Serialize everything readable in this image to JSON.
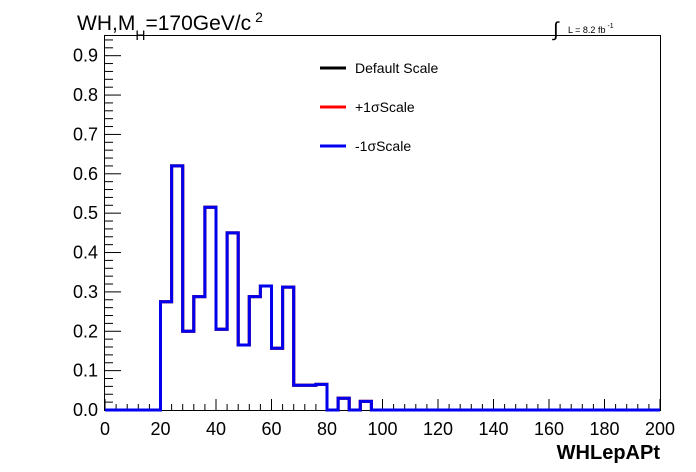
{
  "chart_data": {
    "type": "step",
    "title": {
      "main": "WH,M",
      "sub": "H",
      "rest": "=170GeV/c",
      "sup": "2"
    },
    "lumi": {
      "symbol": "∫",
      "text": "L = 8.2 fb",
      "sup": "-1"
    },
    "xlabel": "WHLepAPt",
    "xlim": [
      0,
      200
    ],
    "ylim": [
      0,
      0.95
    ],
    "x_ticks": [
      "0",
      "20",
      "40",
      "60",
      "80",
      "100",
      "120",
      "140",
      "160",
      "180",
      "200"
    ],
    "x_tick_values": [
      0,
      20,
      40,
      60,
      80,
      100,
      120,
      140,
      160,
      180,
      200
    ],
    "y_ticks": [
      "0.0",
      "0.1",
      "0.2",
      "0.3",
      "0.4",
      "0.5",
      "0.6",
      "0.7",
      "0.8",
      "0.9"
    ],
    "y_tick_values": [
      0,
      0.1,
      0.2,
      0.3,
      0.4,
      0.5,
      0.6,
      0.7,
      0.8,
      0.9
    ],
    "bin_width": 4,
    "series": [
      {
        "name": "Default Scale",
        "color": "#000000",
        "bin_edges": [
          0,
          4,
          8,
          12,
          16,
          20,
          24,
          28,
          32,
          36,
          40,
          44,
          48,
          52,
          56,
          60,
          64,
          68,
          72,
          76,
          80,
          84,
          88,
          92,
          96,
          100,
          104,
          108,
          112,
          116,
          120,
          124,
          128,
          132,
          136,
          140,
          144,
          148,
          152,
          156,
          160,
          164,
          168,
          172,
          176,
          180,
          184,
          188,
          192,
          196,
          200
        ],
        "values": [
          0,
          0,
          0,
          0,
          0,
          0.275,
          0.62,
          0.2,
          0.288,
          0.515,
          0.205,
          0.45,
          0.165,
          0.288,
          0.315,
          0.157,
          0.312,
          0.063,
          0.063,
          0.065,
          0,
          0.03,
          0,
          0.022,
          0,
          0,
          0,
          0,
          0,
          0,
          0,
          0,
          0,
          0,
          0,
          0,
          0,
          0,
          0,
          0,
          0,
          0,
          0,
          0,
          0,
          0,
          0,
          0,
          0,
          0
        ]
      },
      {
        "name": "+1σScale",
        "color": "#ff0000",
        "bin_edges": [
          0,
          4,
          8,
          12,
          16,
          20,
          24,
          28,
          32,
          36,
          40,
          44,
          48,
          52,
          56,
          60,
          64,
          68,
          72,
          76,
          80,
          84,
          88,
          92,
          96,
          100,
          104,
          108,
          112,
          116,
          120,
          124,
          128,
          132,
          136,
          140,
          144,
          148,
          152,
          156,
          160,
          164,
          168,
          172,
          176,
          180,
          184,
          188,
          192,
          196,
          200
        ],
        "values": [
          0,
          0,
          0,
          0,
          0,
          0.275,
          0.62,
          0.2,
          0.288,
          0.515,
          0.205,
          0.45,
          0.165,
          0.288,
          0.315,
          0.157,
          0.312,
          0.063,
          0.063,
          0.065,
          0,
          0.03,
          0,
          0.022,
          0,
          0,
          0,
          0,
          0,
          0,
          0,
          0,
          0,
          0,
          0,
          0,
          0,
          0,
          0,
          0,
          0,
          0,
          0,
          0,
          0,
          0,
          0,
          0,
          0,
          0
        ]
      },
      {
        "name": "-1σScale",
        "color": "#0000ee",
        "bin_edges": [
          0,
          4,
          8,
          12,
          16,
          20,
          24,
          28,
          32,
          36,
          40,
          44,
          48,
          52,
          56,
          60,
          64,
          68,
          72,
          76,
          80,
          84,
          88,
          92,
          96,
          100,
          104,
          108,
          112,
          116,
          120,
          124,
          128,
          132,
          136,
          140,
          144,
          148,
          152,
          156,
          160,
          164,
          168,
          172,
          176,
          180,
          184,
          188,
          192,
          196,
          200
        ],
        "values": [
          0,
          0,
          0,
          0,
          0,
          0.275,
          0.62,
          0.2,
          0.288,
          0.515,
          0.205,
          0.45,
          0.165,
          0.288,
          0.315,
          0.157,
          0.312,
          0.063,
          0.063,
          0.065,
          0,
          0.03,
          0,
          0.022,
          0,
          0,
          0,
          0,
          0,
          0,
          0,
          0,
          0,
          0,
          0,
          0,
          0,
          0,
          0,
          0,
          0,
          0,
          0,
          0,
          0,
          0,
          0,
          0,
          0,
          0
        ]
      }
    ],
    "legend_position": "top-center",
    "grid": false
  }
}
